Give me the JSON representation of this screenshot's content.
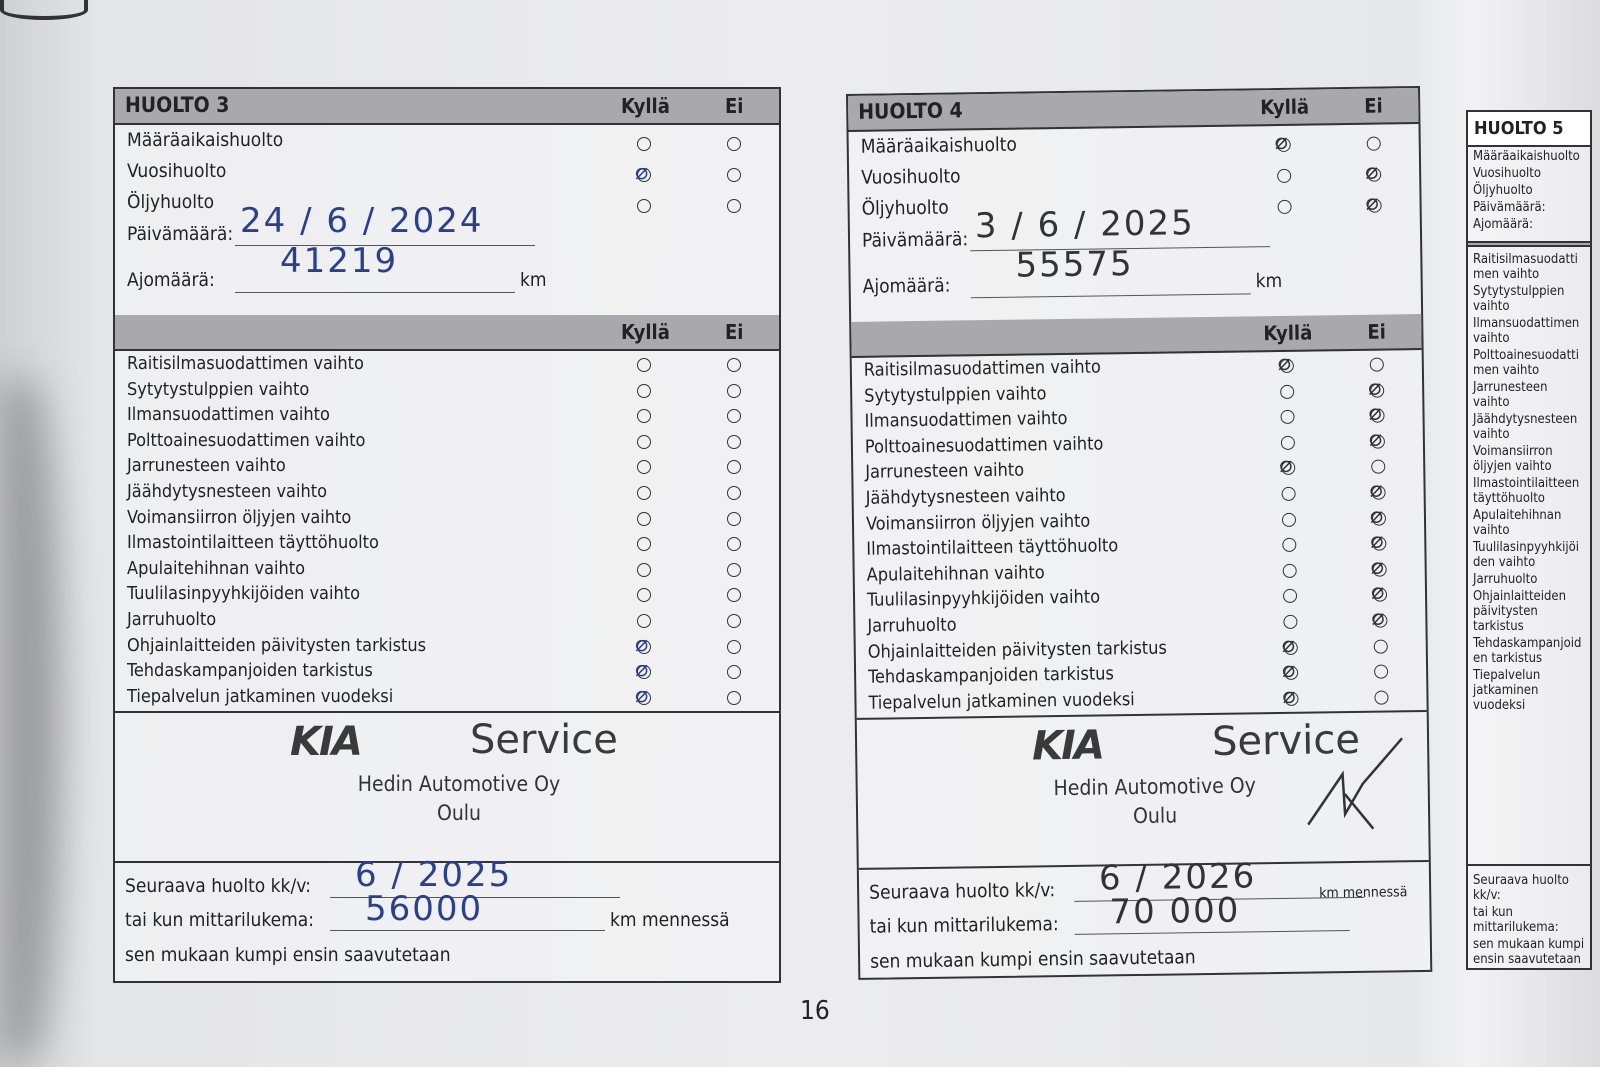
{
  "page_number": "16",
  "columns": {
    "yes": "Kyllä",
    "no": "Ei"
  },
  "fields": {
    "date_label": "Päivämäärä:",
    "km_label": "Ajomäärä:",
    "km_unit": "km",
    "next_service_label": "Seuraava huolto kk/v:",
    "odometer_label": "tai kun mittarilukema:",
    "km_by": "km mennessä",
    "whichever_first": "sen mukaan kumpi ensin saavutetaan"
  },
  "service_types": [
    "Määräaikaishuolto",
    "Vuosihuolto",
    "Öljyhuolto"
  ],
  "checklist": [
    "Raitisilmasuodattimen vaihto",
    "Sytytystulppien vaihto",
    "Ilmansuodattimen vaihto",
    "Polttoainesuodattimen vaihto",
    "Jarrunesteen vaihto",
    "Jäähdytysnesteen vaihto",
    "Voimansiirron öljyjen vaihto",
    "Ilmastointilaitteen täyttöhuolto",
    "Apulaitehihnan vaihto",
    "Tuulilasinpyyhkijöiden vaihto",
    "Jarruhuolto",
    "Ohjainlaitteiden päivitysten tarkistus",
    "Tehdaskampanjoiden tarkistus",
    "Tiepalvelun jatkaminen vuodeksi"
  ],
  "panels": [
    {
      "title": "HUOLTO 3",
      "service_type_marks": [
        "none",
        "yes",
        "none"
      ],
      "date": "24 / 6 / 2024",
      "km": "41219",
      "checklist_marks": [
        "none",
        "none",
        "none",
        "none",
        "none",
        "none",
        "none",
        "none",
        "none",
        "none",
        "none",
        "yes",
        "yes",
        "yes"
      ],
      "stamp": {
        "logo": "KIA",
        "service": "Service",
        "company": "Hedin Automotive Oy",
        "city": "Oulu"
      },
      "next_service": "6 / 2025",
      "next_km": "56000"
    },
    {
      "title": "HUOLTO 4",
      "service_type_marks": [
        "yes",
        "no",
        "no"
      ],
      "date": "3 / 6 / 2025",
      "km": "55575",
      "checklist_marks": [
        "yes",
        "no",
        "no",
        "no",
        "yes",
        "no",
        "no",
        "no",
        "no",
        "no",
        "no",
        "yes",
        "yes",
        "yes"
      ],
      "stamp": {
        "logo": "KIA",
        "service": "Service",
        "company": "Hedin Automotive Oy",
        "city": "Oulu"
      },
      "next_service": "6 / 2026",
      "next_km": "70 000"
    }
  ],
  "next_panel_title": "HUOLTO 5",
  "colors": {
    "ink": "#2b3f8f",
    "header_bg": "#a9a9ab",
    "paper": "#ececee"
  }
}
